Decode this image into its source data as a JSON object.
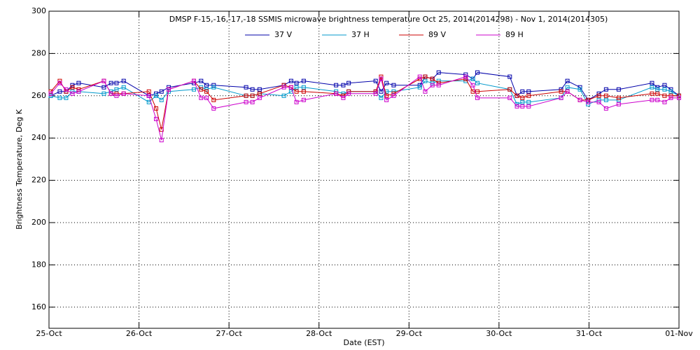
{
  "chart_data": {
    "type": "line",
    "title": "DMSP F-15,-16,-17,-18 SSMIS microwave brightness temperature Oct 25, 2014(2014298) - Nov  1, 2014(2014305)",
    "xlabel": "Date (EST)",
    "ylabel": "Brightness Temperature, Deg K",
    "x": [
      0.02,
      0.12,
      0.19,
      0.26,
      0.33,
      0.61,
      0.69,
      0.75,
      0.83,
      1.11,
      1.19,
      1.25,
      1.33,
      1.61,
      1.69,
      1.75,
      1.83,
      2.19,
      2.26,
      2.34,
      2.61,
      2.69,
      2.75,
      2.83,
      3.19,
      3.27,
      3.33,
      3.63,
      3.69,
      3.75,
      3.83,
      4.12,
      4.18,
      4.26,
      4.33,
      4.63,
      4.71,
      4.76,
      5.12,
      5.2,
      5.26,
      5.33,
      5.69,
      5.76,
      5.9,
      5.99,
      6.11,
      6.19,
      6.33,
      6.7,
      6.76,
      6.84,
      6.91,
      7.0
    ],
    "series": [
      {
        "name": "37 V",
        "color": "#0000aa",
        "values": [
          260,
          262,
          262,
          265,
          266,
          264,
          266,
          266,
          267,
          260,
          261,
          262,
          264,
          266,
          267,
          265,
          265,
          264,
          263,
          263,
          265,
          267,
          266,
          267,
          265,
          265,
          266,
          267,
          262,
          266,
          265,
          265,
          269,
          268,
          271,
          270,
          268,
          271,
          269,
          260,
          262,
          262,
          263,
          267,
          264,
          258,
          261,
          263,
          263,
          266,
          264,
          265,
          263,
          260
        ]
      },
      {
        "name": "37 H",
        "color": "#0099cc",
        "values": [
          260,
          259,
          259,
          262,
          262,
          261,
          262,
          263,
          264,
          257,
          260,
          258,
          262,
          263,
          264,
          263,
          264,
          260,
          260,
          261,
          260,
          262,
          264,
          264,
          262,
          261,
          262,
          262,
          259,
          262,
          262,
          264,
          267,
          266,
          267,
          267,
          268,
          266,
          263,
          256,
          257,
          257,
          259,
          264,
          263,
          256,
          258,
          258,
          258,
          264,
          263,
          263,
          262,
          260
        ]
      },
      {
        "name": "89 V",
        "color": "#cc0000",
        "values": [
          262,
          267,
          262,
          264,
          263,
          267,
          261,
          261,
          261,
          262,
          254,
          244,
          263,
          267,
          263,
          262,
          258,
          260,
          260,
          261,
          265,
          264,
          262,
          262,
          261,
          260,
          262,
          262,
          269,
          260,
          261,
          268,
          269,
          268,
          266,
          268,
          262,
          262,
          263,
          260,
          259,
          260,
          262,
          262,
          258,
          258,
          260,
          260,
          259,
          261,
          261,
          260,
          260,
          260
        ]
      },
      {
        "name": "89 H",
        "color": "#cc00cc",
        "values": [
          261,
          266,
          263,
          261,
          262,
          267,
          261,
          260,
          261,
          260,
          249,
          239,
          263,
          267,
          259,
          259,
          254,
          257,
          257,
          259,
          264,
          264,
          257,
          258,
          261,
          259,
          261,
          261,
          268,
          258,
          260,
          269,
          262,
          265,
          265,
          269,
          265,
          259,
          259,
          255,
          255,
          255,
          259,
          262,
          258,
          257,
          257,
          254,
          256,
          258,
          258,
          257,
          259,
          259
        ]
      }
    ],
    "xlim": [
      0,
      7
    ],
    "xticks": [
      {
        "value": 0,
        "label": "25-Oct"
      },
      {
        "value": 1,
        "label": "26-Oct"
      },
      {
        "value": 2,
        "label": "27-Oct"
      },
      {
        "value": 3,
        "label": "28-Oct"
      },
      {
        "value": 4,
        "label": "29-Oct"
      },
      {
        "value": 5,
        "label": "30-Oct"
      },
      {
        "value": 6,
        "label": "31-Oct"
      },
      {
        "value": 7,
        "label": "01-Nov"
      }
    ],
    "ylim": [
      150,
      300
    ],
    "yticks": [
      160,
      180,
      200,
      220,
      240,
      260,
      280,
      300
    ],
    "grid": true,
    "legend": "top"
  }
}
